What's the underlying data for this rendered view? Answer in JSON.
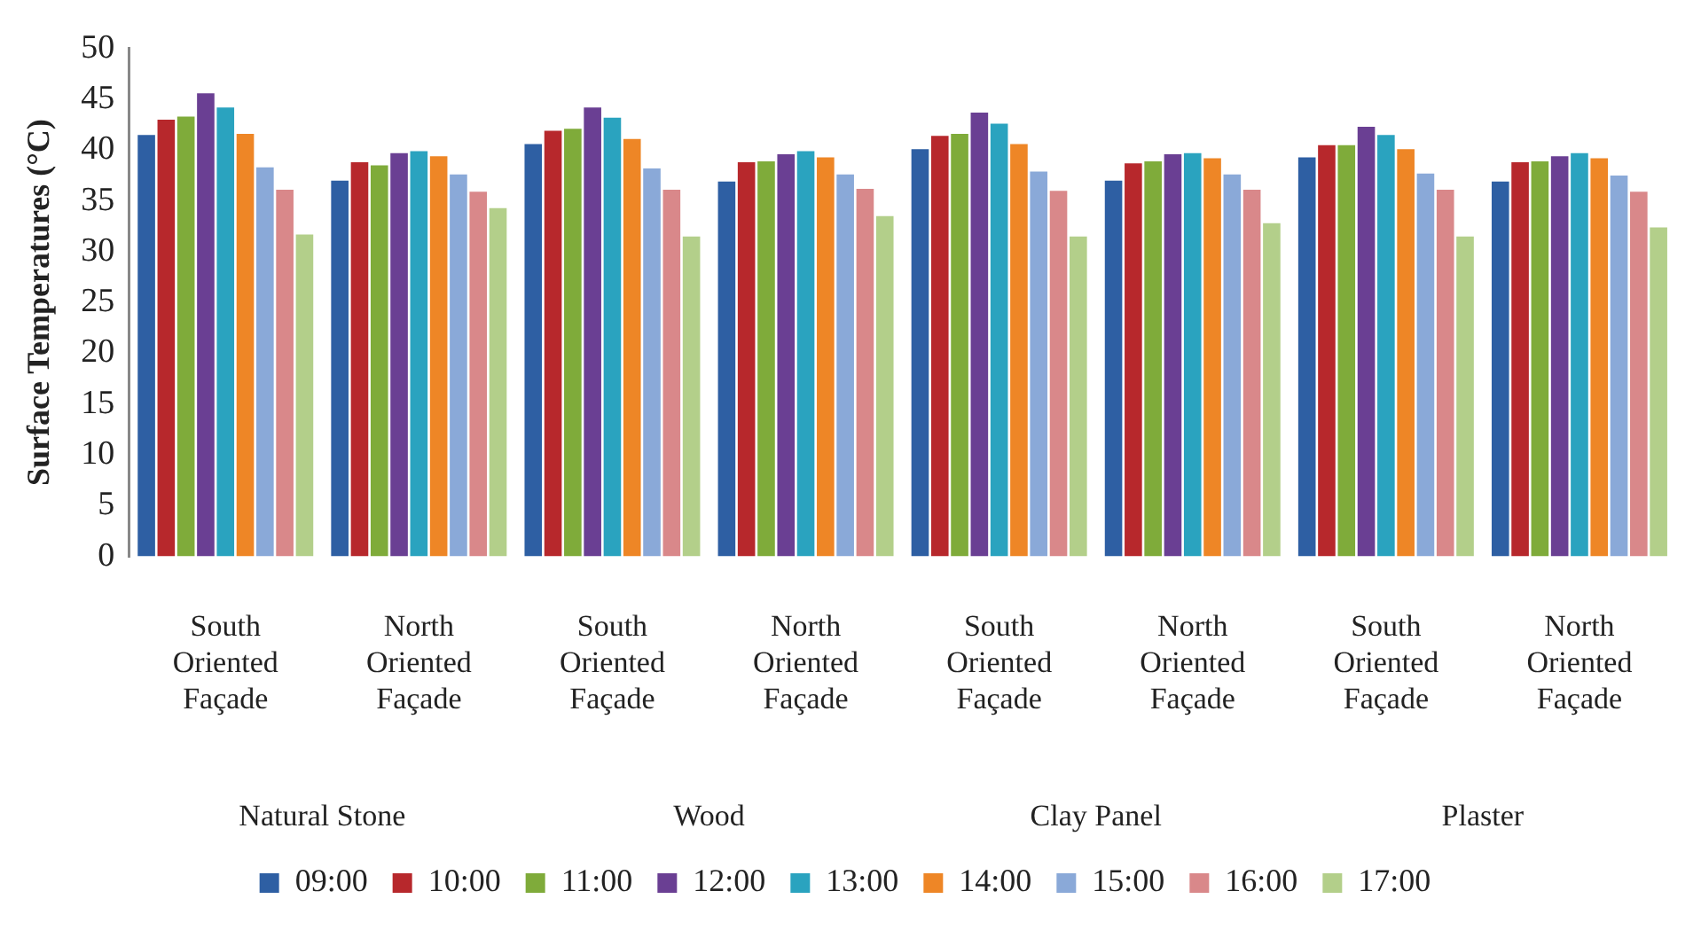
{
  "chart_data": {
    "type": "bar",
    "ylabel": "Surface Temperatures (°C)",
    "categories": [
      "South Oriented Façade",
      "North Oriented Façade",
      "South Oriented Façade",
      "North Oriented Façade",
      "South Oriented Façade",
      "North Oriented Façade",
      "South Oriented Façade",
      "North Oriented Façade"
    ],
    "annotations": [
      "Natural Stone",
      "Wood",
      "Clay Panel",
      "Plaster"
    ],
    "series": [
      {
        "name": "09:00",
        "color": "#2e5fa3",
        "values": [
          41.5,
          37,
          40.6,
          36.9,
          40.1,
          37,
          39.3,
          36.9
        ]
      },
      {
        "name": "10:00",
        "color": "#b7282c",
        "values": [
          43,
          38.8,
          41.9,
          38.8,
          41.4,
          38.7,
          40.5,
          38.8
        ]
      },
      {
        "name": "11:00",
        "color": "#7fab3a",
        "values": [
          43.3,
          38.5,
          42.1,
          38.9,
          41.6,
          38.9,
          40.5,
          38.9
        ]
      },
      {
        "name": "12:00",
        "color": "#6a3f93",
        "values": [
          45.6,
          39.7,
          44.2,
          39.6,
          43.7,
          39.6,
          42.3,
          39.4
        ]
      },
      {
        "name": "13:00",
        "color": "#2aa3bf",
        "values": [
          44.2,
          39.9,
          43.2,
          39.9,
          42.6,
          39.7,
          41.5,
          39.7
        ]
      },
      {
        "name": "14:00",
        "color": "#ee8626",
        "values": [
          41.6,
          39.4,
          41.1,
          39.3,
          40.6,
          39.2,
          40.1,
          39.2
        ]
      },
      {
        "name": "15:00",
        "color": "#8aa9d8",
        "values": [
          38.3,
          37.6,
          38.2,
          37.6,
          37.9,
          37.6,
          37.7,
          37.5
        ]
      },
      {
        "name": "16:00",
        "color": "#d9888a",
        "values": [
          36.1,
          35.9,
          36.1,
          36.2,
          36,
          36.1,
          36.1,
          35.9
        ]
      },
      {
        "name": "17:00",
        "color": "#b3cf8a",
        "values": [
          31.7,
          34.3,
          31.5,
          33.5,
          31.5,
          32.8,
          31.5,
          32.4
        ]
      }
    ],
    "ylim": [
      0,
      50
    ],
    "yticks": [
      0,
      5,
      10,
      15,
      20,
      25,
      30,
      35,
      40,
      45,
      50
    ],
    "grid": false,
    "legend": "bottom"
  }
}
